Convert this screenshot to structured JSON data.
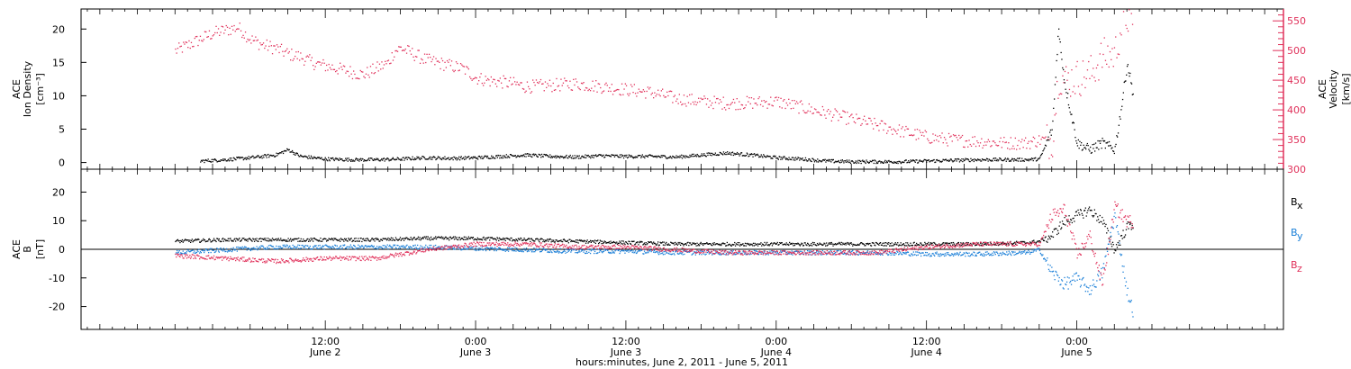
{
  "chart_data": [
    {
      "type": "scatter",
      "panel": "top",
      "ylabel_left": [
        "ACE",
        "Ion Density",
        "[cm⁻³]"
      ],
      "ylabel_right": [
        "ACE",
        "Velocity",
        "[km/s]"
      ],
      "yticks_left": [
        0,
        5,
        10,
        15,
        20
      ],
      "ylim_left": [
        -1,
        23
      ],
      "yticks_right": [
        300,
        350,
        400,
        450,
        500,
        550
      ],
      "ylim_right": [
        300,
        570
      ],
      "colors": {
        "density": "#000000",
        "velocity": "#e0305a"
      },
      "series": [
        {
          "name": "Ion Density",
          "axis": "left",
          "color": "#000000",
          "points": [
            [
              2,
              0.3
            ],
            [
              4,
              0.5
            ],
            [
              6,
              0.8
            ],
            [
              8,
              1.2
            ],
            [
              9,
              2.0
            ],
            [
              10,
              1.0
            ],
            [
              12,
              0.6
            ],
            [
              14,
              0.5
            ],
            [
              16,
              0.5
            ],
            [
              18,
              0.6
            ],
            [
              20,
              0.8
            ],
            [
              22,
              0.7
            ],
            [
              24,
              0.8
            ],
            [
              26,
              1.0
            ],
            [
              28,
              1.2
            ],
            [
              30,
              1.0
            ],
            [
              32,
              0.9
            ],
            [
              34,
              1.1
            ],
            [
              36,
              1.0
            ],
            [
              38,
              1.0
            ],
            [
              40,
              0.9
            ],
            [
              42,
              1.2
            ],
            [
              44,
              1.5
            ],
            [
              46,
              1.2
            ],
            [
              48,
              0.8
            ],
            [
              50,
              0.6
            ],
            [
              52,
              0.3
            ],
            [
              54,
              0.2
            ],
            [
              56,
              0.2
            ],
            [
              58,
              0.2
            ],
            [
              60,
              0.3
            ],
            [
              62,
              0.4
            ],
            [
              64,
              0.5
            ],
            [
              66,
              0.5
            ],
            [
              68,
              0.5
            ],
            [
              69,
              0.6
            ],
            [
              70,
              5.0
            ],
            [
              70.5,
              20.0
            ],
            [
              71,
              12.0
            ],
            [
              72,
              3.0
            ],
            [
              73,
              2.0
            ],
            [
              74,
              3.0
            ],
            [
              75,
              2.0
            ],
            [
              75.5,
              8.0
            ],
            [
              76,
              15.0
            ],
            [
              76.5,
              10.0
            ]
          ]
        },
        {
          "name": "Velocity",
          "axis": "right",
          "color": "#e0305a",
          "points": [
            [
              0,
              500
            ],
            [
              1,
              510
            ],
            [
              2,
              520
            ],
            [
              3,
              530
            ],
            [
              4,
              535
            ],
            [
              5,
              540
            ],
            [
              6,
              520
            ],
            [
              7,
              510
            ],
            [
              8,
              505
            ],
            [
              9,
              495
            ],
            [
              10,
              490
            ],
            [
              11,
              480
            ],
            [
              12,
              475
            ],
            [
              13,
              470
            ],
            [
              14,
              465
            ],
            [
              15,
              460
            ],
            [
              16,
              470
            ],
            [
              17,
              480
            ],
            [
              17.5,
              500
            ],
            [
              18,
              505
            ],
            [
              19,
              495
            ],
            [
              20,
              485
            ],
            [
              21,
              480
            ],
            [
              22,
              475
            ],
            [
              23,
              470
            ],
            [
              24,
              455
            ],
            [
              25,
              450
            ],
            [
              26,
              448
            ],
            [
              27,
              445
            ],
            [
              28,
              440
            ],
            [
              30,
              442
            ],
            [
              32,
              445
            ],
            [
              34,
              440
            ],
            [
              36,
              435
            ],
            [
              38,
              430
            ],
            [
              40,
              420
            ],
            [
              42,
              415
            ],
            [
              44,
              412
            ],
            [
              46,
              413
            ],
            [
              48,
              415
            ],
            [
              50,
              405
            ],
            [
              52,
              395
            ],
            [
              54,
              385
            ],
            [
              56,
              375
            ],
            [
              58,
              365
            ],
            [
              60,
              355
            ],
            [
              62,
              350
            ],
            [
              64,
              348
            ],
            [
              66,
              345
            ],
            [
              68,
              345
            ],
            [
              69,
              350
            ],
            [
              70,
              350
            ],
            [
              70.5,
              460
            ],
            [
              71,
              450
            ],
            [
              72,
              455
            ],
            [
              73,
              460
            ],
            [
              74,
              490
            ],
            [
              75,
              495
            ],
            [
              75.5,
              540
            ],
            [
              76,
              560
            ],
            [
              76.5,
              530
            ]
          ]
        }
      ]
    },
    {
      "type": "scatter",
      "panel": "bottom",
      "ylabel_left": [
        "ACE",
        "B",
        "[nT]"
      ],
      "yticks_left": [
        -20,
        -10,
        0,
        10,
        20
      ],
      "ylim_left": [
        -28,
        28
      ],
      "zero_line": true,
      "series": [
        {
          "name": "Bx",
          "color": "#000000",
          "points": [
            [
              0,
              3
            ],
            [
              4,
              3.5
            ],
            [
              8,
              3.5
            ],
            [
              12,
              3.5
            ],
            [
              16,
              3.5
            ],
            [
              20,
              4
            ],
            [
              24,
              4
            ],
            [
              28,
              3.5
            ],
            [
              32,
              3
            ],
            [
              36,
              2.5
            ],
            [
              40,
              2
            ],
            [
              44,
              2
            ],
            [
              48,
              2
            ],
            [
              52,
              2
            ],
            [
              56,
              2
            ],
            [
              60,
              2
            ],
            [
              64,
              2
            ],
            [
              68,
              2.5
            ],
            [
              69,
              3
            ],
            [
              70,
              5
            ],
            [
              71,
              10
            ],
            [
              72,
              12
            ],
            [
              73,
              14
            ],
            [
              74,
              10
            ],
            [
              75,
              0
            ],
            [
              76,
              8
            ],
            [
              76.5,
              9
            ]
          ]
        },
        {
          "name": "By",
          "color": "#1a7fd8",
          "points": [
            [
              0,
              -1
            ],
            [
              4,
              0
            ],
            [
              8,
              1
            ],
            [
              12,
              1
            ],
            [
              16,
              1
            ],
            [
              20,
              1
            ],
            [
              24,
              0.5
            ],
            [
              28,
              0
            ],
            [
              32,
              -0.5
            ],
            [
              36,
              -0.5
            ],
            [
              40,
              -1
            ],
            [
              44,
              -1
            ],
            [
              48,
              -1
            ],
            [
              52,
              -1
            ],
            [
              56,
              -1
            ],
            [
              60,
              -1.5
            ],
            [
              64,
              -1.5
            ],
            [
              68,
              -1
            ],
            [
              69,
              0
            ],
            [
              70,
              -8
            ],
            [
              71,
              -12
            ],
            [
              72,
              -10
            ],
            [
              73,
              -14
            ],
            [
              74,
              -8
            ],
            [
              75,
              12
            ],
            [
              76,
              -15
            ],
            [
              76.5,
              -22
            ]
          ]
        },
        {
          "name": "Bz",
          "color": "#e0305a",
          "points": [
            [
              0,
              -2
            ],
            [
              4,
              -3
            ],
            [
              8,
              -4
            ],
            [
              12,
              -3
            ],
            [
              16,
              -3
            ],
            [
              20,
              0
            ],
            [
              24,
              2
            ],
            [
              28,
              2
            ],
            [
              32,
              1
            ],
            [
              36,
              1
            ],
            [
              40,
              0
            ],
            [
              44,
              -1
            ],
            [
              48,
              -1
            ],
            [
              52,
              -1
            ],
            [
              56,
              -1
            ],
            [
              60,
              1
            ],
            [
              64,
              2
            ],
            [
              68,
              2
            ],
            [
              69,
              2
            ],
            [
              70,
              12
            ],
            [
              71,
              14
            ],
            [
              72,
              -2
            ],
            [
              73,
              5
            ],
            [
              74,
              -12
            ],
            [
              75,
              15
            ],
            [
              76,
              10
            ],
            [
              76.5,
              10
            ]
          ]
        }
      ],
      "legend_labels": {
        "Bx": "x",
        "By": "y",
        "Bz": "z",
        "base": "B"
      }
    }
  ],
  "x_axis": {
    "unit": "hours since June 2, 2011 00:00",
    "xlim": [
      -7.5,
      88.5
    ],
    "major_ticks": [
      {
        "x": 12,
        "time": "12:00",
        "date": "June 2"
      },
      {
        "x": 24,
        "time": "0:00",
        "date": "June 3"
      },
      {
        "x": 36,
        "time": "12:00",
        "date": "June 3"
      },
      {
        "x": 48,
        "time": "0:00",
        "date": "June 4"
      },
      {
        "x": 60,
        "time": "12:00",
        "date": "June 4"
      },
      {
        "x": 72,
        "time": "0:00",
        "date": "June 5"
      }
    ],
    "label": "hours:minutes, June  2, 2011 - June  5, 2011"
  }
}
